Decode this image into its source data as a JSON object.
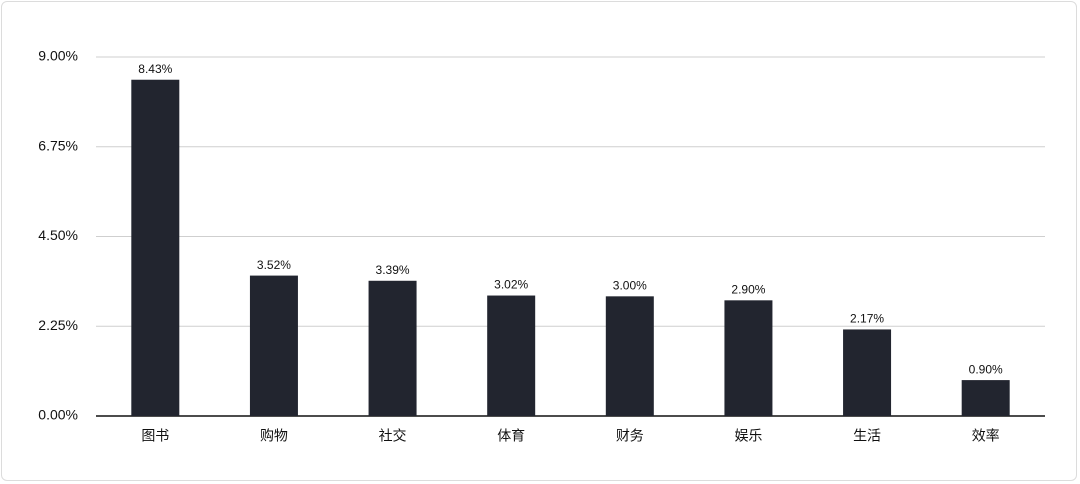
{
  "chart_data": {
    "type": "bar",
    "categories": [
      "图书",
      "购物",
      "社交",
      "体育",
      "财务",
      "娱乐",
      "生活",
      "效率"
    ],
    "values": [
      8.43,
      3.52,
      3.39,
      3.02,
      3.0,
      2.9,
      2.17,
      0.9
    ],
    "value_labels": [
      "8.43%",
      "3.52%",
      "3.39%",
      "3.02%",
      "3.00%",
      "2.90%",
      "2.17%",
      "0.90%"
    ],
    "color": "#22252f",
    "ylim": [
      0,
      9
    ],
    "yticks": [
      {
        "value": 0,
        "label": "0.00%"
      },
      {
        "value": 2.25,
        "label": "2.25%"
      },
      {
        "value": 4.5,
        "label": "4.50%"
      },
      {
        "value": 6.75,
        "label": "6.75%"
      },
      {
        "value": 9,
        "label": "9.00%"
      }
    ],
    "grid": true
  }
}
